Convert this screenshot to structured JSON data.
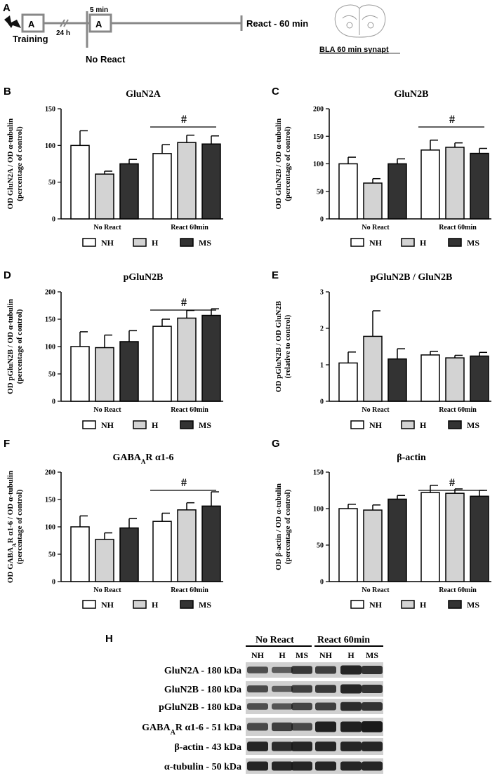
{
  "colors": {
    "NH": "#ffffff",
    "H": "#d3d3d3",
    "MS": "#333333",
    "blot_bg": "#d0d0d0",
    "band": "#1a1a1a"
  },
  "timeline": {
    "letter": "A",
    "box1": "A",
    "box2": "A",
    "training": "Training",
    "interval": "24 h",
    "five_min": "5 min",
    "no_react": "No React",
    "react": "React  - 60 min",
    "brain_caption": "BLA 60 min  synapt"
  },
  "legend": {
    "nh": "NH",
    "h": "H",
    "ms": "MS"
  },
  "chart_data": [
    {
      "id": "B",
      "type": "bar",
      "letter": "B",
      "title": "GluN2A",
      "ylabel_1": "OD GluN2A / OD α-tubulin",
      "ylabel_2": "(percentage of control)",
      "ylim": [
        0,
        150
      ],
      "yticks": [
        0,
        50,
        100,
        150
      ],
      "ytick_labels": [
        "0",
        "50",
        "100",
        "150"
      ],
      "groups": [
        "No React",
        "React 60min"
      ],
      "series": [
        {
          "name": "NH",
          "values": [
            100,
            89
          ],
          "errors": [
            20,
            12
          ]
        },
        {
          "name": "H",
          "values": [
            61,
            104
          ],
          "errors": [
            4,
            10
          ]
        },
        {
          "name": "MS",
          "values": [
            75,
            102
          ],
          "errors": [
            6,
            11
          ]
        }
      ],
      "annotation": "#"
    },
    {
      "id": "C",
      "type": "bar",
      "letter": "C",
      "title": "GluN2B",
      "ylabel_1": "OD GluN2B / OD α-tubulin",
      "ylabel_2": "(percentage of control)",
      "ylim": [
        0,
        200
      ],
      "yticks": [
        0,
        50,
        100,
        150,
        200
      ],
      "ytick_labels": [
        "0",
        "50",
        "100",
        "150",
        "200"
      ],
      "groups": [
        "No React",
        "React 60min"
      ],
      "series": [
        {
          "name": "NH",
          "values": [
            100,
            125
          ],
          "errors": [
            12,
            18
          ]
        },
        {
          "name": "H",
          "values": [
            65,
            130
          ],
          "errors": [
            8,
            8
          ]
        },
        {
          "name": "MS",
          "values": [
            100,
            119
          ],
          "errors": [
            9,
            9
          ]
        }
      ],
      "annotation": "#"
    },
    {
      "id": "D",
      "type": "bar",
      "letter": "D",
      "title": "pGluN2B",
      "ylabel_1": "OD pGluN2B / OD α-tubulin",
      "ylabel_2": "(percentage of control)",
      "ylim": [
        0,
        200
      ],
      "yticks": [
        0,
        50,
        100,
        150,
        200
      ],
      "ytick_labels": [
        "0",
        "50",
        "100",
        "150",
        "200"
      ],
      "groups": [
        "No React",
        "React 60min"
      ],
      "series": [
        {
          "name": "NH",
          "values": [
            100,
            137
          ],
          "errors": [
            27,
            13
          ]
        },
        {
          "name": "H",
          "values": [
            98,
            152
          ],
          "errors": [
            23,
            14
          ]
        },
        {
          "name": "MS",
          "values": [
            109,
            157
          ],
          "errors": [
            20,
            12
          ]
        }
      ],
      "annotation": "#"
    },
    {
      "id": "E",
      "type": "bar",
      "letter": "E",
      "title": "pGluN2B / GluN2B",
      "ylabel_1": "OD pGluN2B / OD GluN2B",
      "ylabel_2": "(relative to control)",
      "ylim": [
        0,
        3
      ],
      "yticks": [
        0,
        1,
        2,
        3
      ],
      "ytick_labels": [
        "0",
        "1",
        "2",
        "3"
      ],
      "groups": [
        "No React",
        "React 60min"
      ],
      "series": [
        {
          "name": "NH",
          "values": [
            1.05,
            1.27
          ],
          "errors": [
            0.3,
            0.1
          ]
        },
        {
          "name": "H",
          "values": [
            1.78,
            1.19
          ],
          "errors": [
            0.7,
            0.07
          ]
        },
        {
          "name": "MS",
          "values": [
            1.16,
            1.24
          ],
          "errors": [
            0.28,
            0.1
          ]
        }
      ],
      "annotation": ""
    },
    {
      "id": "F",
      "type": "bar",
      "letter": "F",
      "title": "GABAAR α1-6",
      "ylabel_1": "OD GABAAR α1-6 / OD α-tubulin",
      "ylabel_2": "(percentage of control)",
      "ylim": [
        0,
        200
      ],
      "yticks": [
        0,
        50,
        100,
        150,
        200
      ],
      "ytick_labels": [
        "0",
        "50",
        "100",
        "150",
        "200"
      ],
      "groups": [
        "No React",
        "React 60min"
      ],
      "series": [
        {
          "name": "NH",
          "values": [
            100,
            110
          ],
          "errors": [
            20,
            15
          ]
        },
        {
          "name": "H",
          "values": [
            77,
            131
          ],
          "errors": [
            12,
            13
          ]
        },
        {
          "name": "MS",
          "values": [
            98,
            138
          ],
          "errors": [
            17,
            26
          ]
        }
      ],
      "annotation": "#"
    },
    {
      "id": "G",
      "type": "bar",
      "letter": "G",
      "title": "β-actin",
      "ylabel_1": "OD β-actin / OD α-tubulin",
      "ylabel_2": "(percentage of control)",
      "ylim": [
        0,
        150
      ],
      "yticks": [
        0,
        50,
        100,
        150
      ],
      "ytick_labels": [
        "0",
        "50",
        "100",
        "150"
      ],
      "groups": [
        "No React",
        "React 60min"
      ],
      "series": [
        {
          "name": "NH",
          "values": [
            100,
            122
          ],
          "errors": [
            6,
            10
          ]
        },
        {
          "name": "H",
          "values": [
            98,
            121
          ],
          "errors": [
            7,
            6
          ]
        },
        {
          "name": "MS",
          "values": [
            113,
            117
          ],
          "errors": [
            5,
            8
          ]
        }
      ],
      "annotation": "#"
    }
  ],
  "blot": {
    "letter": "H",
    "group_no_react": "No React",
    "group_react": "React 60min",
    "columns": [
      "NH",
      "H",
      "MS",
      "NH",
      "H",
      "MS"
    ],
    "rows": [
      {
        "label": "GluN2A - 180 kDa",
        "intensity": [
          0.55,
          0.45,
          0.75,
          0.7,
          0.9,
          0.8
        ]
      },
      {
        "label": "GluN2B - 180 kDa",
        "intensity": [
          0.6,
          0.45,
          0.7,
          0.75,
          0.9,
          0.8
        ]
      },
      {
        "label": "pGluN2B - 180 kDa",
        "intensity": [
          0.55,
          0.5,
          0.65,
          0.7,
          0.85,
          0.8
        ]
      },
      {
        "label": "GABAAR α1-6 - 51 kDa",
        "intensity": [
          0.6,
          0.7,
          0.6,
          0.95,
          0.95,
          1.0
        ]
      },
      {
        "label": "β-actin - 43 kDa",
        "intensity": [
          0.9,
          0.85,
          0.9,
          0.9,
          0.9,
          0.9
        ]
      },
      {
        "label": "α-tubulin - 50 kDa",
        "intensity": [
          0.9,
          0.9,
          0.9,
          0.9,
          0.9,
          0.9
        ]
      }
    ]
  }
}
